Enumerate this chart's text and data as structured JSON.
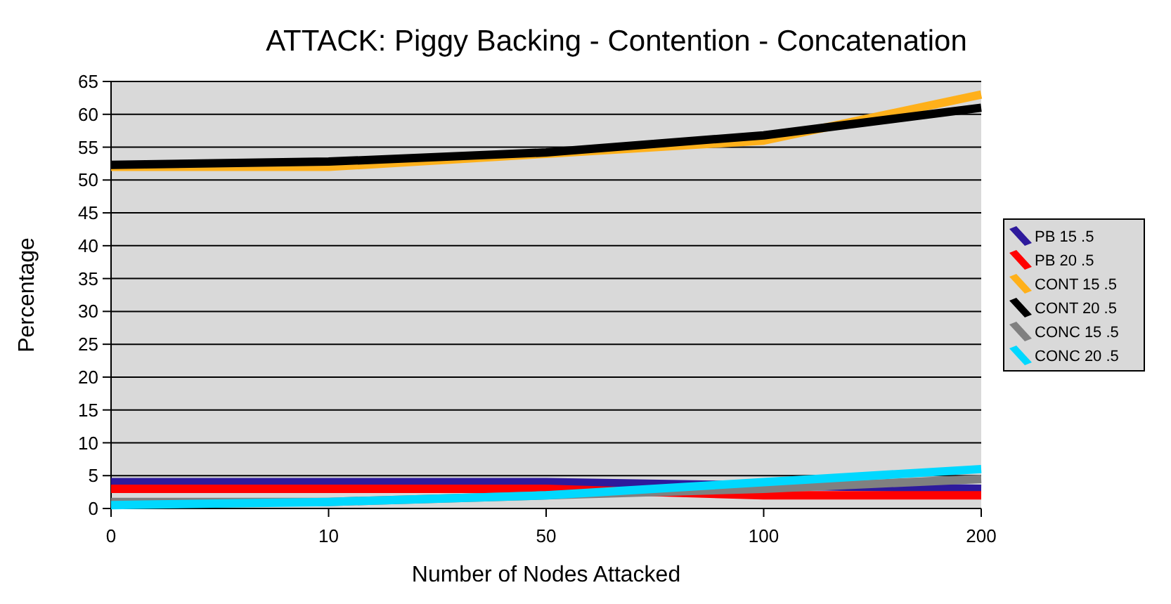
{
  "chart_data": {
    "type": "line",
    "title": "ATTACK: Piggy Backing - Contention - Concatenation",
    "xlabel": "Number of Nodes Attacked",
    "ylabel": "Percentage",
    "categories": [
      "0",
      "10",
      "50",
      "100",
      "200"
    ],
    "series": [
      {
        "name": "PB 15 .5",
        "color": "#2e1a9c",
        "values": [
          4,
          4,
          4,
          3.5,
          3
        ]
      },
      {
        "name": "PB 20 .5",
        "color": "#ff0000",
        "values": [
          3,
          3,
          3,
          2,
          2
        ]
      },
      {
        "name": "CONT 15 .5",
        "color": "#ffb01a",
        "values": [
          52,
          52,
          54,
          56,
          63
        ]
      },
      {
        "name": "CONT 20 .5",
        "color": "#000000",
        "values": [
          52.3,
          52.8,
          54.2,
          56.8,
          61
        ]
      },
      {
        "name": "CONC 15 .5",
        "color": "#808080",
        "values": [
          1,
          1,
          2,
          3,
          4.5
        ]
      },
      {
        "name": "CONC 20 .5",
        "color": "#00d8ff",
        "values": [
          0.5,
          1,
          2,
          4,
          6
        ]
      }
    ],
    "ylim": [
      0,
      65
    ],
    "yticks": [
      0,
      5,
      10,
      15,
      20,
      25,
      30,
      35,
      40,
      45,
      50,
      55,
      60,
      65
    ],
    "grid": "y",
    "legend": "right",
    "marker": "none",
    "line_style": "solid"
  }
}
